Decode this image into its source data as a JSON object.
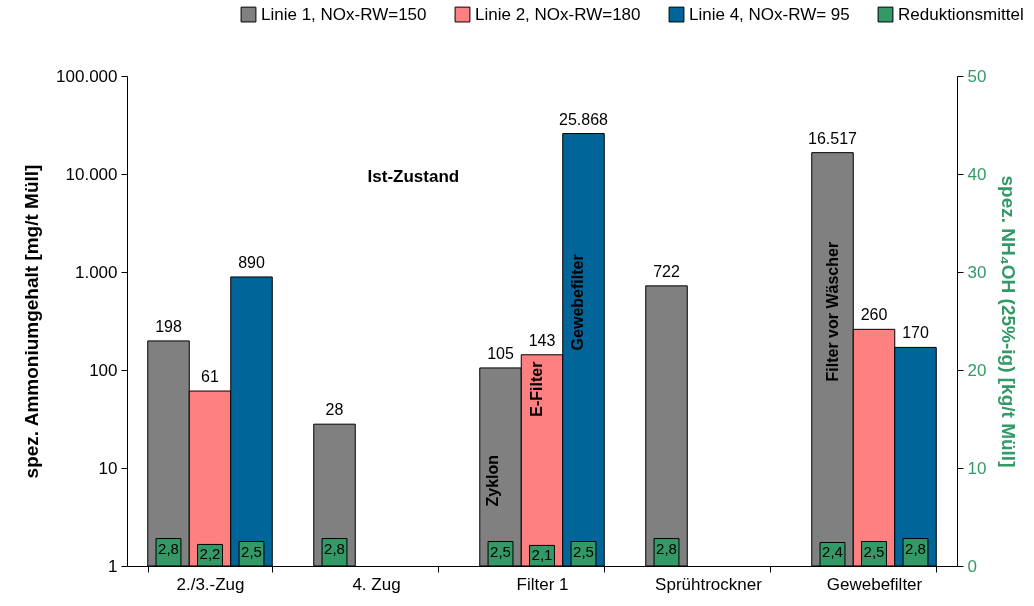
{
  "chart_data": {
    "type": "bar",
    "ylabel": "spez. Ammoniumgehalt [mg/t Müll]",
    "y2label": "spez. NH₄OH (25%-ig) [kg/t Müll]",
    "categories": [
      "2./3.-Zug",
      "4. Zug",
      "Filter 1",
      "Sprühtrockner",
      "Gewebefilter"
    ],
    "series": [
      {
        "name": "Linie 1, NOx-RW=150",
        "color": "#808080",
        "values": [
          198,
          28,
          105,
          722,
          16517
        ],
        "value_labels": [
          "198",
          "28",
          "105",
          "722",
          "16.517"
        ]
      },
      {
        "name": "Linie 2, NOx-RW=180",
        "color": "#ff8080",
        "values": [
          61,
          null,
          143,
          null,
          260
        ],
        "value_labels": [
          "61",
          null,
          "143",
          null,
          "260"
        ]
      },
      {
        "name": "Linie 4, NOx-RW= 95",
        "color": "#006699",
        "values": [
          890,
          null,
          25868,
          null,
          170
        ],
        "value_labels": [
          "890",
          null,
          "25.868",
          null,
          "170"
        ]
      },
      {
        "name": "Reduktionsmittel",
        "color": "#339966",
        "axis": "y2",
        "values": [
          2.8,
          2.8,
          2.5,
          2.8,
          2.4
        ],
        "value_labels": [
          "2,8",
          "2,8",
          "2,5",
          "2,8",
          "2,4"
        ]
      },
      {
        "color": "#339966",
        "axis": "y2",
        "values": [
          2.2,
          null,
          2.1,
          null,
          2.5
        ],
        "value_labels": [
          "2,2",
          null,
          "2,1",
          null,
          "2,5"
        ]
      },
      {
        "color": "#339966",
        "axis": "y2",
        "values": [
          2.5,
          null,
          2.5,
          null,
          2.8
        ],
        "value_labels": [
          "2,5",
          null,
          "2,5",
          null,
          "2,8"
        ]
      }
    ],
    "log": true,
    "ylim": [
      1,
      100000
    ],
    "yticks": [
      1,
      10,
      100,
      {
        "value": 1000,
        "label": "1.000"
      },
      {
        "value": 10000,
        "label": "10.000"
      },
      {
        "value": 100000,
        "label": "100.000"
      }
    ],
    "y2lim": [
      0,
      50
    ],
    "y2ticks": [
      0,
      10,
      20,
      30,
      40,
      50
    ],
    "grid": false,
    "legend": "top",
    "annotations": [
      "Ist-Zustand",
      "Zyklon",
      "E-Filter",
      "Gewebefilter",
      "Filter vor Wäscher"
    ]
  }
}
